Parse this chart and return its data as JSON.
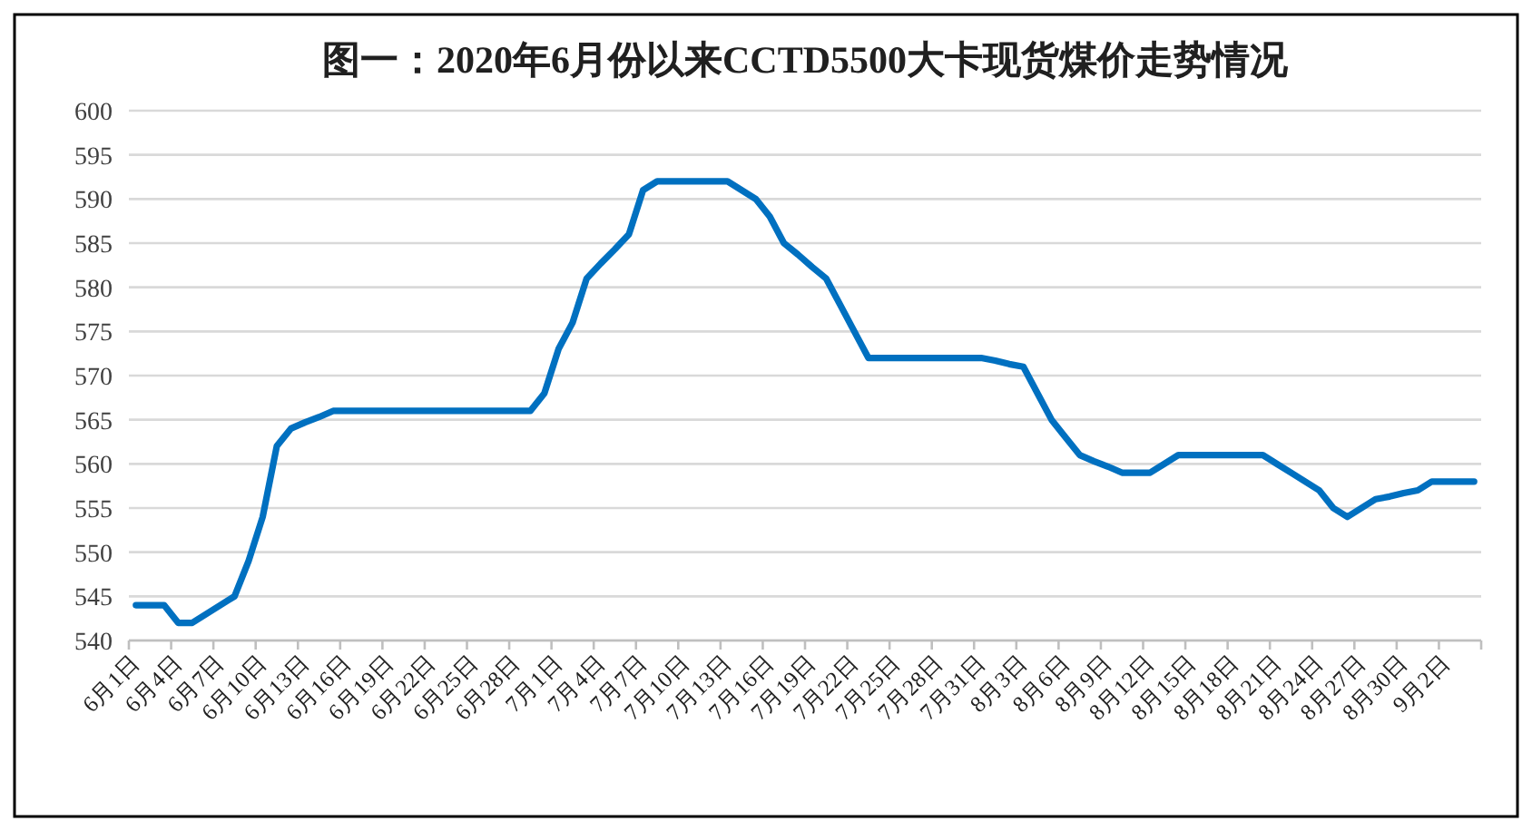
{
  "chart_data": {
    "type": "line",
    "title": "图一：2020年6月份以来CCTD5500大卡现货煤价走势情况",
    "categories": [
      "6月1日",
      null,
      null,
      "6月4日",
      null,
      null,
      "6月7日",
      null,
      null,
      "6月10日",
      null,
      null,
      "6月13日",
      null,
      null,
      "6月16日",
      null,
      null,
      "6月19日",
      null,
      null,
      "6月22日",
      null,
      null,
      "6月25日",
      null,
      null,
      "6月28日",
      null,
      null,
      "7月1日",
      null,
      null,
      "7月4日",
      null,
      null,
      "7月7日",
      null,
      null,
      "7月10日",
      null,
      null,
      "7月13日",
      null,
      null,
      "7月16日",
      null,
      null,
      "7月19日",
      null,
      null,
      "7月22日",
      null,
      null,
      "7月25日",
      null,
      null,
      "7月28日",
      null,
      null,
      "7月31日",
      null,
      null,
      "8月3日",
      null,
      null,
      "8月6日",
      null,
      null,
      "8月9日",
      null,
      null,
      "8月12日",
      null,
      null,
      "8月15日",
      null,
      null,
      "8月18日",
      null,
      null,
      "8月21日",
      null,
      null,
      "8月24日",
      null,
      null,
      "8月27日",
      null,
      null,
      "8月30日",
      null,
      null,
      "9月2日",
      null,
      null
    ],
    "series": [
      {
        "color": "#0070c0",
        "values": [
          544,
          544,
          544,
          542,
          542,
          543,
          544,
          545,
          549,
          554,
          562,
          564,
          564.7,
          565.3,
          566,
          566,
          566,
          566,
          566,
          566,
          566,
          566,
          566,
          566,
          566,
          566,
          566,
          566,
          566,
          568,
          573,
          576,
          581,
          582.7,
          584.3,
          586,
          591,
          592,
          592,
          592,
          592,
          592,
          592,
          591,
          590,
          588,
          585,
          583.7,
          582.3,
          581,
          578,
          575,
          572,
          572,
          572,
          572,
          572,
          572,
          572,
          572,
          572,
          571.7,
          571.3,
          571,
          568,
          565,
          563,
          561,
          560.3,
          559.7,
          559,
          559,
          559,
          560,
          561,
          561,
          561,
          561,
          561,
          561,
          561,
          560,
          559,
          558,
          557,
          555,
          554,
          555,
          556,
          556.3,
          556.7,
          557,
          558,
          558,
          558,
          558
        ]
      }
    ],
    "ylim": [
      540,
      600
    ],
    "yticks": [
      540,
      545,
      550,
      555,
      560,
      565,
      570,
      575,
      580,
      585,
      590,
      595,
      600
    ],
    "grid": "y",
    "line_style": "solid"
  }
}
